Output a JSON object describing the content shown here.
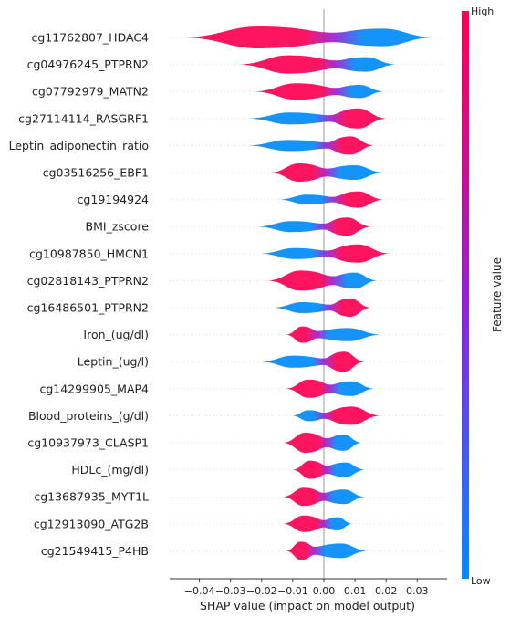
{
  "chart_data": {
    "type": "violin",
    "xlabel": "SHAP value (impact on model output)",
    "xlim": [
      -0.05,
      0.038
    ],
    "xticks": [
      -0.04,
      -0.03,
      -0.02,
      -0.01,
      0.0,
      0.01,
      0.02,
      0.03
    ],
    "xtick_labels": [
      "−0.04",
      "−0.03",
      "−0.02",
      "−0.01",
      "0.00",
      "0.01",
      "0.02",
      "0.03"
    ],
    "colorbar": {
      "label": "Feature value",
      "high": "High",
      "low": "Low",
      "color_high": "#ff0052",
      "color_low": "#008bfb"
    },
    "features": [
      {
        "name": "cg11762807_HDAC4",
        "min": -0.045,
        "max": 0.035,
        "width": 12,
        "split": 0.003,
        "left": "high",
        "right": "low"
      },
      {
        "name": "cg04976245_PTPRN2",
        "min": -0.027,
        "max": 0.023,
        "width": 10,
        "split": 0.004,
        "left": "high",
        "right": "low"
      },
      {
        "name": "cg07792979_MATN2",
        "min": -0.022,
        "max": 0.019,
        "width": 9,
        "split": 0.004,
        "left": "high",
        "right": "low"
      },
      {
        "name": "cg27114114_RASGRF1",
        "min": -0.024,
        "max": 0.02,
        "width": 11,
        "split": 0.002,
        "left": "low",
        "right": "high"
      },
      {
        "name": "Leptin_adiponectin_ratio",
        "min": -0.024,
        "max": 0.016,
        "width": 10,
        "split": 0.001,
        "left": "low",
        "right": "high"
      },
      {
        "name": "cg03516256_EBF1",
        "min": -0.017,
        "max": 0.019,
        "width": 10,
        "split": 0.001,
        "left": "high",
        "right": "low"
      },
      {
        "name": "cg19194924",
        "min": -0.014,
        "max": 0.019,
        "width": 9,
        "split": 0.003,
        "left": "low",
        "right": "high"
      },
      {
        "name": "BMI_zscore",
        "min": -0.021,
        "max": 0.015,
        "width": 10,
        "split": 0.0,
        "left": "low",
        "right": "high"
      },
      {
        "name": "cg10987850_HMCN1",
        "min": -0.02,
        "max": 0.021,
        "width": 10,
        "split": 0.001,
        "left": "low",
        "right": "high"
      },
      {
        "name": "cg02818143_PTPRN2",
        "min": -0.018,
        "max": 0.017,
        "width": 11,
        "split": 0.003,
        "left": "high",
        "right": "low"
      },
      {
        "name": "cg16486501_PTPRN2",
        "min": -0.016,
        "max": 0.015,
        "width": 10,
        "split": 0.002,
        "left": "low",
        "right": "high"
      },
      {
        "name": "Iron_(ug/dl)",
        "min": -0.012,
        "max": 0.018,
        "width": 9,
        "split": -0.002,
        "left": "high",
        "right": "low"
      },
      {
        "name": "Leptin_(ug/l)",
        "min": -0.02,
        "max": 0.013,
        "width": 11,
        "split": 0.0,
        "left": "low",
        "right": "high"
      },
      {
        "name": "cg14299905_MAP4",
        "min": -0.012,
        "max": 0.016,
        "width": 10,
        "split": 0.002,
        "left": "high",
        "right": "low"
      },
      {
        "name": "Blood_proteins_(g/dl)",
        "min": -0.01,
        "max": 0.018,
        "width": 10,
        "split": 0.0,
        "left": "low",
        "right": "high"
      },
      {
        "name": "cg10937973_CLASP1",
        "min": -0.013,
        "max": 0.012,
        "width": 11,
        "split": 0.001,
        "left": "high",
        "right": "low"
      },
      {
        "name": "HDLc_(mg/dl)",
        "min": -0.01,
        "max": 0.013,
        "width": 10,
        "split": 0.001,
        "left": "high",
        "right": "low"
      },
      {
        "name": "cg13687935_MYT1L",
        "min": -0.013,
        "max": 0.013,
        "width": 10,
        "split": 0.0,
        "left": "high",
        "right": "low"
      },
      {
        "name": "cg12913090_ATG2B",
        "min": -0.013,
        "max": 0.009,
        "width": 9,
        "split": 0.0,
        "left": "high",
        "right": "low"
      },
      {
        "name": "cg21549415_P4HB",
        "min": -0.012,
        "max": 0.014,
        "width": 10,
        "split": -0.003,
        "left": "high",
        "right": "low"
      }
    ]
  }
}
